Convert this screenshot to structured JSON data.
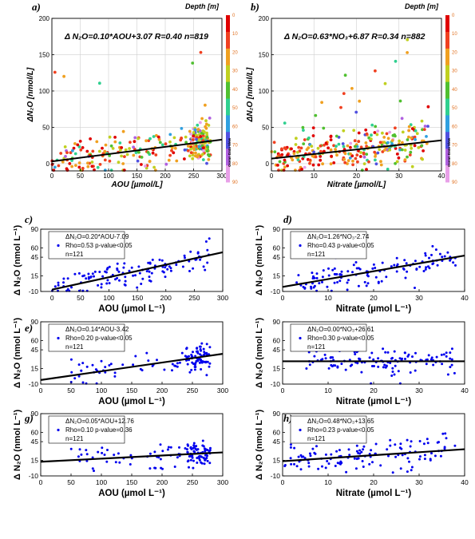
{
  "figure": {
    "colorbar_colors": [
      "#e8a0e8",
      "#b060e0",
      "#5050e0",
      "#30a0e0",
      "#30d090",
      "#50c030",
      "#c0d020",
      "#f0a020",
      "#f04020",
      "#e00000"
    ]
  },
  "chart_data": [
    {
      "panel": "a)",
      "type": "scatter",
      "equation": "Δ N₂O=0.10*AOU+3.07 R=0.40 n=819",
      "xlabel": "AOU [µmol/L]",
      "ylabel": "ΔN₂O [nmol/L]",
      "xlim": [
        0,
        300
      ],
      "ylim": [
        -10,
        200
      ],
      "xticks": [
        0,
        50,
        100,
        150,
        200,
        250,
        300
      ],
      "yticks": [
        0,
        50,
        100,
        150,
        200
      ],
      "grid": true,
      "colorbar": {
        "title": "Depth [m]",
        "ticks": [
          0,
          10,
          20,
          30,
          40,
          50,
          60,
          70,
          80,
          90
        ],
        "label": "Ocean Data View"
      },
      "fit": {
        "slope": 0.1,
        "intercept": 3.07
      },
      "x_range": [
        0,
        280
      ],
      "n": 819
    },
    {
      "panel": "b)",
      "type": "scatter",
      "equation": "Δ N₂O=0.63*NO₃+6.87 R=0.34 n=882",
      "xlabel": "Nitrate [µmol/L]",
      "ylabel": "ΔN₂O [nmol/L]",
      "xlim": [
        0,
        40
      ],
      "ylim": [
        -10,
        200
      ],
      "xticks": [
        0,
        10,
        20,
        30,
        40
      ],
      "yticks": [
        0,
        50,
        100,
        150,
        200
      ],
      "grid": true,
      "colorbar": {
        "title": "Depth [m]",
        "ticks": [
          0,
          10,
          20,
          30,
          40,
          50,
          60,
          70,
          80,
          90
        ],
        "label": "Ocean Data View"
      },
      "fit": {
        "slope": 0.63,
        "intercept": 6.87
      },
      "x_range": [
        0,
        37
      ],
      "n": 882
    },
    {
      "panel": "c)",
      "type": "scatter",
      "annotation": [
        "ΔN₂O=0.20*AOU-7.09",
        "Rho=0.53  p-value<0.05",
        "n=121"
      ],
      "xlabel": "AOU (µmol L⁻¹)",
      "ylabel": "Δ N₂O (nmol L⁻¹)",
      "xlim": [
        -20,
        300
      ],
      "ylim": [
        -10,
        90
      ],
      "xticks": [
        0,
        50,
        100,
        150,
        200,
        250,
        300
      ],
      "yticks": [
        -10,
        15,
        45,
        60,
        90
      ],
      "fit": {
        "slope": 0.2,
        "intercept": -7.09
      },
      "x_range": [
        0,
        280
      ],
      "n": 121
    },
    {
      "panel": "d)",
      "type": "scatter",
      "annotation": [
        "ΔN₂O=1.26*NO₃-2.74",
        "Rho=0.43  p-value<0.05",
        "n=121"
      ],
      "xlabel": "Nitrate (µmol L⁻¹)",
      "ylabel": "Δ N₂O (nmol L⁻¹)",
      "xlim": [
        0,
        40
      ],
      "ylim": [
        -10,
        90
      ],
      "xticks": [
        0,
        10,
        20,
        30,
        40
      ],
      "yticks": [
        -10,
        15,
        45,
        60,
        90
      ],
      "fit": {
        "slope": 1.26,
        "intercept": -2.74
      },
      "x_range": [
        3,
        38
      ],
      "n": 121
    },
    {
      "panel": "e)",
      "type": "scatter",
      "annotation": [
        "ΔN₂O=0.14*AOU-3.42",
        "Rho=0.20  p-value<0.05",
        "n=121"
      ],
      "xlabel": "AOU (µmol L⁻¹)",
      "ylabel": "Δ N₂O (nmol L⁻¹)",
      "xlim": [
        0,
        300
      ],
      "ylim": [
        -10,
        90
      ],
      "xticks": [
        0,
        50,
        100,
        150,
        200,
        250,
        300
      ],
      "yticks": [
        -10,
        15,
        45,
        60,
        90
      ],
      "fit": {
        "slope": 0.14,
        "intercept": -3.42
      },
      "x_range": [
        50,
        280
      ],
      "n": 121
    },
    {
      "panel": "f)",
      "type": "scatter",
      "annotation": [
        "ΔN₂O=0.00*NO₃+26.61",
        "Rho=0.30  p-value<0.05",
        "n=121"
      ],
      "xlabel": "Nitrate (µmol L⁻¹)",
      "ylabel": "Δ N₂O (nmol L⁻¹)",
      "xlim": [
        0,
        40
      ],
      "ylim": [
        -10,
        90
      ],
      "xticks": [
        0,
        10,
        20,
        30,
        40
      ],
      "yticks": [
        -10,
        15,
        45,
        60,
        90
      ],
      "fit": {
        "slope": 0.0,
        "intercept": 26.61
      },
      "x_range": [
        5,
        38
      ],
      "n": 121
    },
    {
      "panel": "g)",
      "type": "scatter",
      "annotation": [
        "ΔN₂O=0.05*AOU+12.76",
        "Rho=0.10  p-value=0.36",
        "n=121"
      ],
      "xlabel": "AOU (µmol L⁻¹)",
      "ylabel": "Δ N₂O (nmol L⁻¹)",
      "xlim": [
        0,
        300
      ],
      "ylim": [
        -10,
        90
      ],
      "xticks": [
        0,
        50,
        100,
        150,
        200,
        250,
        300
      ],
      "yticks": [
        -10,
        15,
        45,
        60,
        90
      ],
      "fit": {
        "slope": 0.05,
        "intercept": 12.76
      },
      "x_range": [
        50,
        280
      ],
      "n": 121
    },
    {
      "panel": "h)",
      "type": "scatter",
      "annotation": [
        "ΔN₂O=0.48*NO₃+13.65",
        "Rho=0.23  p-value<0.05",
        "n=121"
      ],
      "xlabel": "Nitrate (µmol L⁻¹)",
      "ylabel": "Δ N₂O (nmol L⁻¹)",
      "xlim": [
        0,
        40
      ],
      "ylim": [
        -10,
        90
      ],
      "xticks": [
        0,
        10,
        20,
        30,
        40
      ],
      "yticks": [
        -10,
        15,
        45,
        60,
        90
      ],
      "fit": {
        "slope": 0.48,
        "intercept": 13.65
      },
      "x_range": [
        0,
        38
      ],
      "n": 121
    }
  ]
}
